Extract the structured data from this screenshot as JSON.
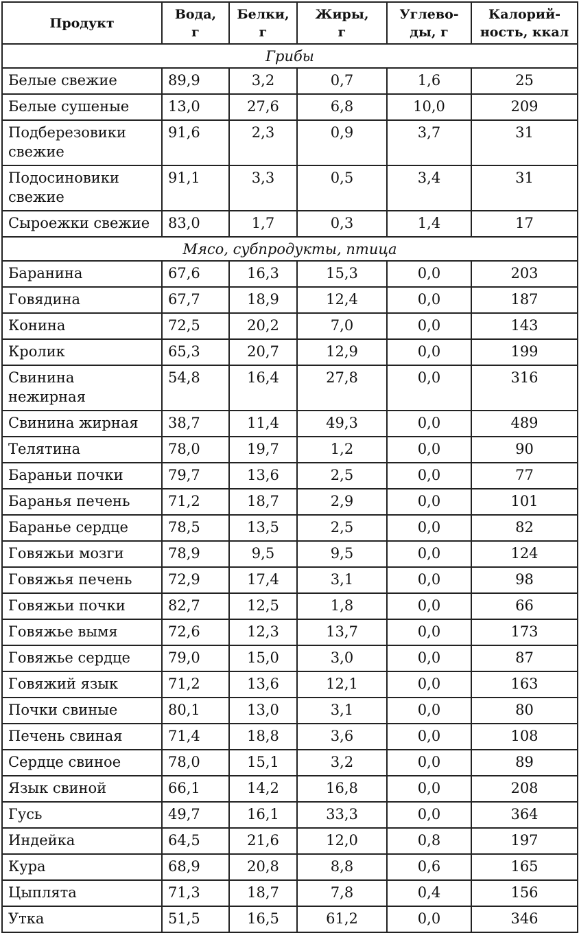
{
  "headers": {
    "product": "Продукт",
    "water": "Вода, г",
    "protein": "Белки, г",
    "fat": "Жиры, г",
    "carbs": "Углево-ды, г",
    "calories": "Калорий-ность, ккал"
  },
  "sections": [
    {
      "title": "Грибы",
      "rows": [
        [
          "Белые свежие",
          "89,9",
          "3,2",
          "0,7",
          "1,6",
          "25"
        ],
        [
          "Белые сушеные",
          "13,0",
          "27,6",
          "6,8",
          "10,0",
          "209"
        ],
        [
          "Подберезовики свежие",
          "91,6",
          "2,3",
          "0,9",
          "3,7",
          "31"
        ],
        [
          "Подосиновики свежие",
          "91,1",
          "3,3",
          "0,5",
          "3,4",
          "31"
        ],
        [
          "Сыроежки свежие",
          "83,0",
          "1,7",
          "0,3",
          "1,4",
          "17"
        ]
      ]
    },
    {
      "title": "Мясо, субпродукты, птица",
      "rows": [
        [
          "Баранина",
          "67,6",
          "16,3",
          "15,3",
          "0,0",
          "203"
        ],
        [
          "Говядина",
          "67,7",
          "18,9",
          "12,4",
          "0,0",
          "187"
        ],
        [
          "Конина",
          "72,5",
          "20,2",
          "7,0",
          "0,0",
          "143"
        ],
        [
          "Кролик",
          "65,3",
          "20,7",
          "12,9",
          "0,0",
          "199"
        ],
        [
          "Свинина нежирная",
          "54,8",
          "16,4",
          "27,8",
          "0,0",
          "316"
        ],
        [
          "Свинина жирная",
          "38,7",
          "11,4",
          "49,3",
          "0,0",
          "489"
        ],
        [
          "Телятина",
          "78,0",
          "19,7",
          "1,2",
          "0,0",
          "90"
        ],
        [
          "Бараньи почки",
          "79,7",
          "13,6",
          "2,5",
          "0,0",
          "77"
        ],
        [
          "Баранья печень",
          "71,2",
          "18,7",
          "2,9",
          "0,0",
          "101"
        ],
        [
          "Баранье сердце",
          "78,5",
          "13,5",
          "2,5",
          "0,0",
          "82"
        ],
        [
          "Говяжьи мозги",
          "78,9",
          "9,5",
          "9,5",
          "0,0",
          "124"
        ],
        [
          "Говяжья печень",
          "72,9",
          "17,4",
          "3,1",
          "0,0",
          "98"
        ],
        [
          "Говяжьи почки",
          "82,7",
          "12,5",
          "1,8",
          "0,0",
          "66"
        ],
        [
          "Говяжье вымя",
          "72,6",
          "12,3",
          "13,7",
          "0,0",
          "173"
        ],
        [
          "Говяжье сердце",
          "79,0",
          "15,0",
          "3,0",
          "0,0",
          "87"
        ],
        [
          "Говяжий язык",
          "71,2",
          "13,6",
          "12,1",
          "0,0",
          "163"
        ],
        [
          "Почки свиные",
          "80,1",
          "13,0",
          "3,1",
          "0,0",
          "80"
        ],
        [
          "Печень свиная",
          "71,4",
          "18,8",
          "3,6",
          "0,0",
          "108"
        ],
        [
          "Сердце свиное",
          "78,0",
          "15,1",
          "3,2",
          "0,0",
          "89"
        ],
        [
          "Язык свиной",
          "66,1",
          "14,2",
          "16,8",
          "0,0",
          "208"
        ],
        [
          "Гусь",
          "49,7",
          "16,1",
          "33,3",
          "0,0",
          "364"
        ],
        [
          "Индейка",
          "64,5",
          "21,6",
          "12,0",
          "0,8",
          "197"
        ],
        [
          "Кура",
          "68,9",
          "20,8",
          "8,8",
          "0,6",
          "165"
        ],
        [
          "Цыплята",
          "71,3",
          "18,7",
          "7,8",
          "0,4",
          "156"
        ],
        [
          "Утка",
          "51,5",
          "16,5",
          "61,2",
          "0,0",
          "346"
        ]
      ]
    }
  ]
}
